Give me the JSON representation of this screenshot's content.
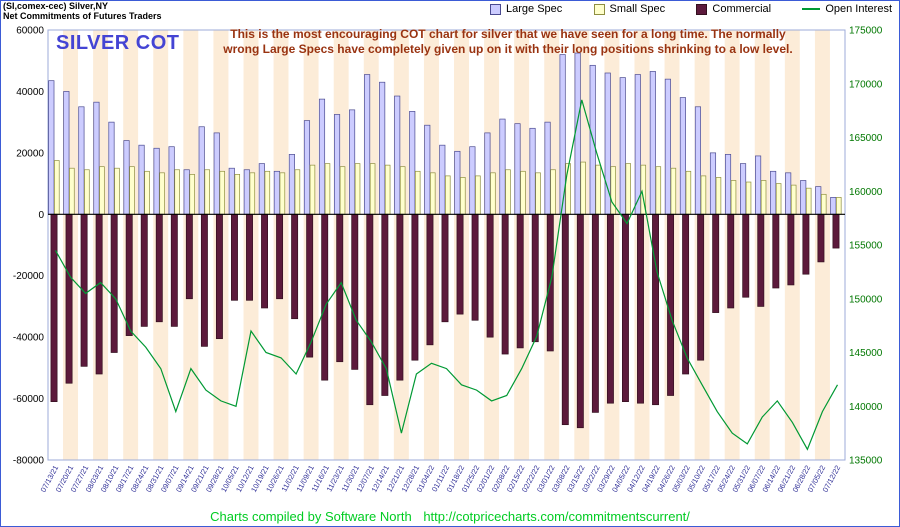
{
  "window": {
    "instrument_line": "(SI,comex-cec) Silver,NY",
    "subtitle_line": "Net Commitments of Futures Traders"
  },
  "legend": [
    {
      "label": "Large Spec",
      "color": "#ccccff",
      "type": "box"
    },
    {
      "label": "Small Spec",
      "color": "#ffffcc",
      "type": "box"
    },
    {
      "label": "Commercial",
      "color": "#5c1a3c",
      "type": "box"
    },
    {
      "label": "Open Interest",
      "color": "#009933",
      "type": "line"
    }
  ],
  "chart_title": "SILVER COT",
  "annotation": {
    "line1": "This is the most encouraging COT chart for silver that we have seen for a long time. The normally",
    "line2": "wrong Large Specs have completely given up on it with their long positions shrinking to a low level."
  },
  "footer": {
    "credit": "Charts compiled by Software North",
    "url": "http://cotpricecharts.com/commitmentscurrent/"
  },
  "colors": {
    "large_spec": "#ccccff",
    "small_spec": "#ffffcc",
    "commercial": "#5c1a3c",
    "open_interest": "#009933",
    "title_blue": "#4444d4",
    "annotation_red": "#993311",
    "footer_green": "#00cc22",
    "stripe_peach": "#fcecd8",
    "right_axis_green": "#007700"
  },
  "chart_data": {
    "type": "bar",
    "title": "SILVER COT",
    "xlabel": "",
    "ylabel": "",
    "legend_position": "top-right",
    "grid": false,
    "background_stripes": [
      "#ffffff",
      "#fcecd8"
    ],
    "categories": [
      "07/13/21",
      "07/20/21",
      "07/27/21",
      "08/03/21",
      "08/10/21",
      "08/17/21",
      "08/24/21",
      "08/31/21",
      "09/07/21",
      "09/14/21",
      "09/21/21",
      "09/28/21",
      "10/05/21",
      "10/12/21",
      "10/19/21",
      "10/26/21",
      "11/02/21",
      "11/09/21",
      "11/16/21",
      "11/23/21",
      "11/30/21",
      "12/07/21",
      "12/14/21",
      "12/21/21",
      "12/28/21",
      "01/04/22",
      "01/11/22",
      "01/18/22",
      "01/25/22",
      "02/01/22",
      "02/08/22",
      "02/15/22",
      "02/22/22",
      "03/01/22",
      "03/08/22",
      "03/15/22",
      "03/22/22",
      "03/29/22",
      "04/05/22",
      "04/12/22",
      "04/19/22",
      "04/26/22",
      "05/03/22",
      "05/10/22",
      "05/17/22",
      "05/24/22",
      "05/31/22",
      "06/07/22",
      "06/14/22",
      "06/21/22",
      "06/28/22",
      "07/05/22",
      "07/12/22"
    ],
    "left_axis": {
      "min": -80000,
      "max": 60000,
      "tick_step": 20000,
      "ticks": [
        60000,
        40000,
        20000,
        0,
        -20000,
        -40000,
        -60000,
        -80000
      ]
    },
    "right_axis": {
      "min": 135000,
      "max": 175000,
      "tick_step": 5000,
      "ticks": [
        175000,
        170000,
        165000,
        160000,
        155000,
        150000,
        145000,
        140000,
        135000
      ]
    },
    "series": [
      {
        "name": "Large Spec",
        "axis": "left",
        "type": "bar",
        "values": [
          43500,
          40000,
          35000,
          36500,
          30000,
          24000,
          22500,
          21500,
          22000,
          14500,
          28500,
          26500,
          15000,
          14500,
          16500,
          14000,
          19500,
          30500,
          37500,
          32500,
          34000,
          45500,
          43000,
          38500,
          33500,
          29000,
          22500,
          20500,
          22000,
          26500,
          31000,
          29500,
          28000,
          30000,
          52000,
          52500,
          48500,
          46000,
          44500,
          45500,
          46500,
          44000,
          38000,
          35000,
          20000,
          19500,
          16500,
          19000,
          14000,
          13500,
          11000,
          9000,
          5500
        ]
      },
      {
        "name": "Small Spec",
        "axis": "left",
        "type": "bar",
        "values": [
          17500,
          15000,
          14500,
          15500,
          15000,
          15500,
          14000,
          13500,
          14500,
          13000,
          14500,
          14000,
          13000,
          13500,
          14000,
          13500,
          14500,
          16000,
          16500,
          15500,
          16500,
          16500,
          16000,
          15500,
          14000,
          13500,
          12500,
          12000,
          12500,
          13500,
          14500,
          14000,
          13500,
          14500,
          16500,
          17000,
          16000,
          15500,
          16500,
          16000,
          15500,
          15000,
          14000,
          12500,
          12000,
          11000,
          10500,
          11000,
          10000,
          9500,
          8500,
          6500,
          5500
        ]
      },
      {
        "name": "Commercial",
        "axis": "left",
        "type": "bar",
        "values": [
          -61000,
          -55000,
          -49500,
          -52000,
          -45000,
          -39500,
          -36500,
          -35000,
          -36500,
          -27500,
          -43000,
          -40500,
          -28000,
          -28000,
          -30500,
          -27500,
          -34000,
          -46500,
          -54000,
          -48000,
          -50500,
          -62000,
          -59000,
          -54000,
          -47500,
          -42500,
          -35000,
          -32500,
          -34500,
          -40000,
          -45500,
          -43500,
          -41500,
          -44500,
          -68500,
          -69500,
          -64500,
          -61500,
          -61000,
          -61500,
          -62000,
          -59000,
          -52000,
          -47500,
          -32000,
          -30500,
          -27000,
          -30000,
          -24000,
          -23000,
          -19500,
          -15500,
          -11000
        ]
      },
      {
        "name": "Open Interest",
        "axis": "right",
        "type": "line",
        "values": [
          154500,
          152000,
          150500,
          151500,
          150000,
          147000,
          145500,
          143500,
          139500,
          143500,
          141500,
          140500,
          140000,
          147000,
          145000,
          144500,
          143000,
          146000,
          149500,
          151500,
          148000,
          146000,
          143500,
          137500,
          143000,
          144000,
          143500,
          142000,
          141500,
          140500,
          141000,
          143500,
          146500,
          152000,
          161500,
          168500,
          163500,
          159000,
          157000,
          160000,
          152500,
          148000,
          144500,
          142000,
          139500,
          137500,
          136500,
          139000,
          140500,
          138500,
          136000,
          139500,
          142000
        ]
      }
    ]
  }
}
